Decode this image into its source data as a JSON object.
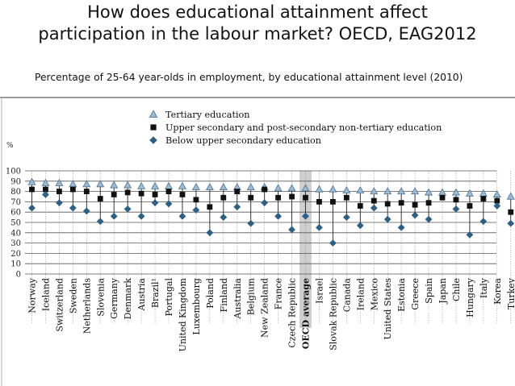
{
  "slide": {
    "title_line1": "How does educational attainment affect",
    "title_line2": "participation in the labour market? OECD, EAG2012",
    "subtitle": "Percentage of 25-64 year-olds in employment, by educational attainment level (2010)"
  },
  "chart_data": {
    "type": "scatter",
    "ylabel": "%",
    "ylim": [
      0,
      100
    ],
    "yticks": [
      0,
      10,
      20,
      30,
      40,
      50,
      60,
      70,
      80,
      90,
      100
    ],
    "highlight_category": "OECD average",
    "legend_position": "top",
    "categories": [
      "Norway",
      "Iceland",
      "Switzerland",
      "Sweden",
      "Netherlands",
      "Slovenia",
      "Germany",
      "Denmark",
      "Austria",
      "Brazil¹",
      "Portugal",
      "United Kingdom",
      "Luxembourg",
      "Poland",
      "Finland",
      "Australia",
      "Belgium",
      "New Zealand",
      "France",
      "Czech Republic",
      "OECD average",
      "Israel",
      "Slovak Republic",
      "Canada",
      "Ireland",
      "Mexico",
      "United States",
      "Estonia",
      "Greece",
      "Spain",
      "Japan",
      "Chile",
      "Hungary",
      "Italy",
      "Korea",
      "Turkey"
    ],
    "series": [
      {
        "name": "Tertiary education",
        "marker": "triangle",
        "values": [
          89,
          88,
          88,
          87,
          87,
          87,
          86,
          86,
          85,
          85,
          85,
          85,
          84,
          84,
          84,
          84,
          84,
          84,
          83,
          83,
          83,
          82,
          82,
          81,
          81,
          80,
          80,
          80,
          80,
          79,
          79,
          79,
          78,
          78,
          77,
          75
        ]
      },
      {
        "name": "Upper secondary and post-secondary non-tertiary education",
        "marker": "square",
        "values": [
          82,
          82,
          80,
          82,
          80,
          73,
          77,
          79,
          78,
          77,
          80,
          77,
          72,
          65,
          74,
          80,
          74,
          82,
          74,
          75,
          74,
          70,
          70,
          74,
          66,
          71,
          68,
          69,
          67,
          69,
          74,
          72,
          66,
          73,
          71,
          60
        ]
      },
      {
        "name": "Below upper secondary education",
        "marker": "diamond",
        "values": [
          64,
          77,
          69,
          64,
          61,
          51,
          56,
          63,
          56,
          69,
          68,
          56,
          62,
          40,
          55,
          65,
          49,
          69,
          56,
          43,
          56,
          45,
          30,
          55,
          47,
          64,
          53,
          45,
          57,
          53,
          null,
          63,
          38,
          51,
          66,
          49
        ]
      }
    ]
  },
  "colors": {
    "triangle_fill": "#9db8cf",
    "triangle_stroke": "#3d6687",
    "square": "#111111",
    "diamond": "#2f5f82",
    "grid": "#555555",
    "highlight": "#cfcfcf"
  }
}
